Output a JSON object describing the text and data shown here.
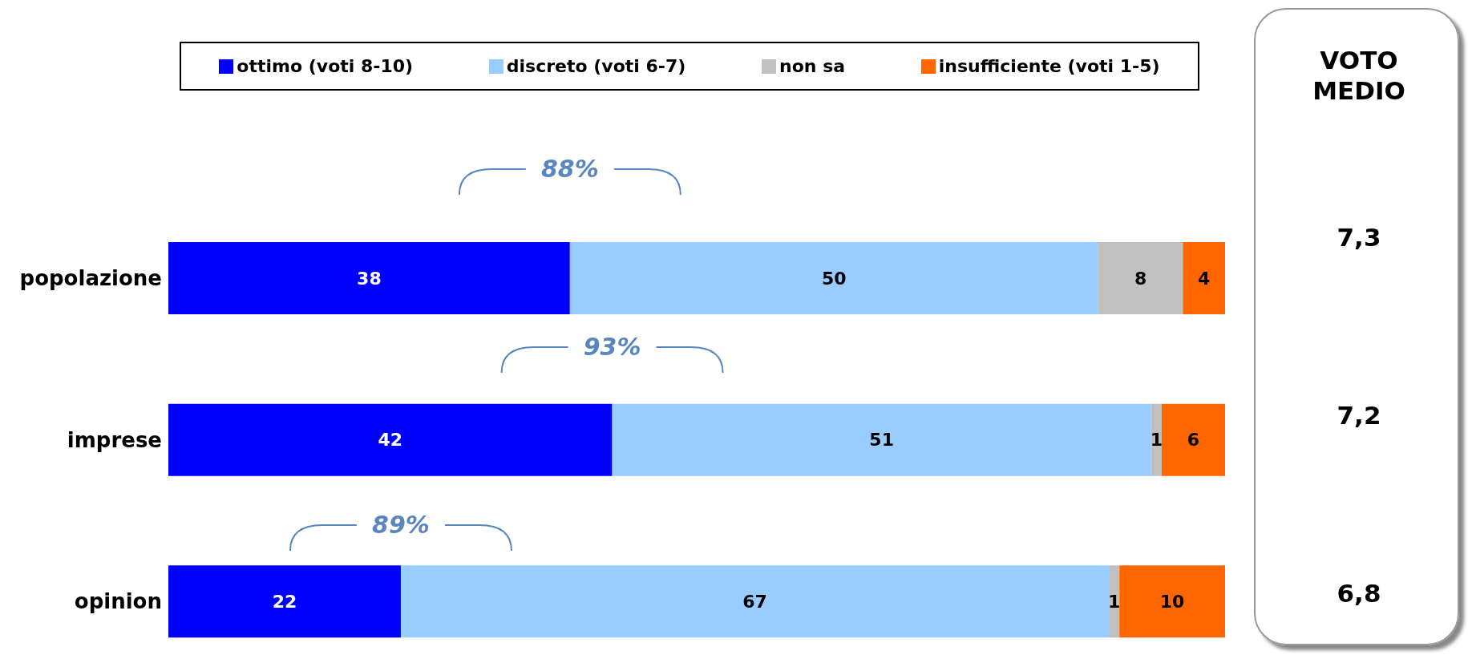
{
  "chart_data": {
    "type": "bar",
    "orientation": "horizontal",
    "stacked": true,
    "categories": [
      "popolazione",
      "imprese",
      "opinion"
    ],
    "series": [
      {
        "name": "ottimo (voti 8-10)",
        "color": "#0000ff",
        "values": [
          38,
          42,
          22
        ]
      },
      {
        "name": "discreto (voti 6-7)",
        "color": "#99ccff",
        "values": [
          50,
          51,
          67
        ]
      },
      {
        "name": "non sa",
        "color": "#c0c0c0",
        "values": [
          8,
          1,
          1
        ]
      },
      {
        "name": "insufficiente (voti 1-5)",
        "color": "#ff6600",
        "values": [
          4,
          6,
          10
        ]
      }
    ],
    "xlim": [
      0,
      100
    ],
    "tick_labels": "y",
    "legend": "top",
    "data_labels": true,
    "annotations": [
      "88%",
      "93%",
      "89%",
      "VOTO MEDIO",
      "7,3",
      "7,2",
      "6,8"
    ]
  }
}
